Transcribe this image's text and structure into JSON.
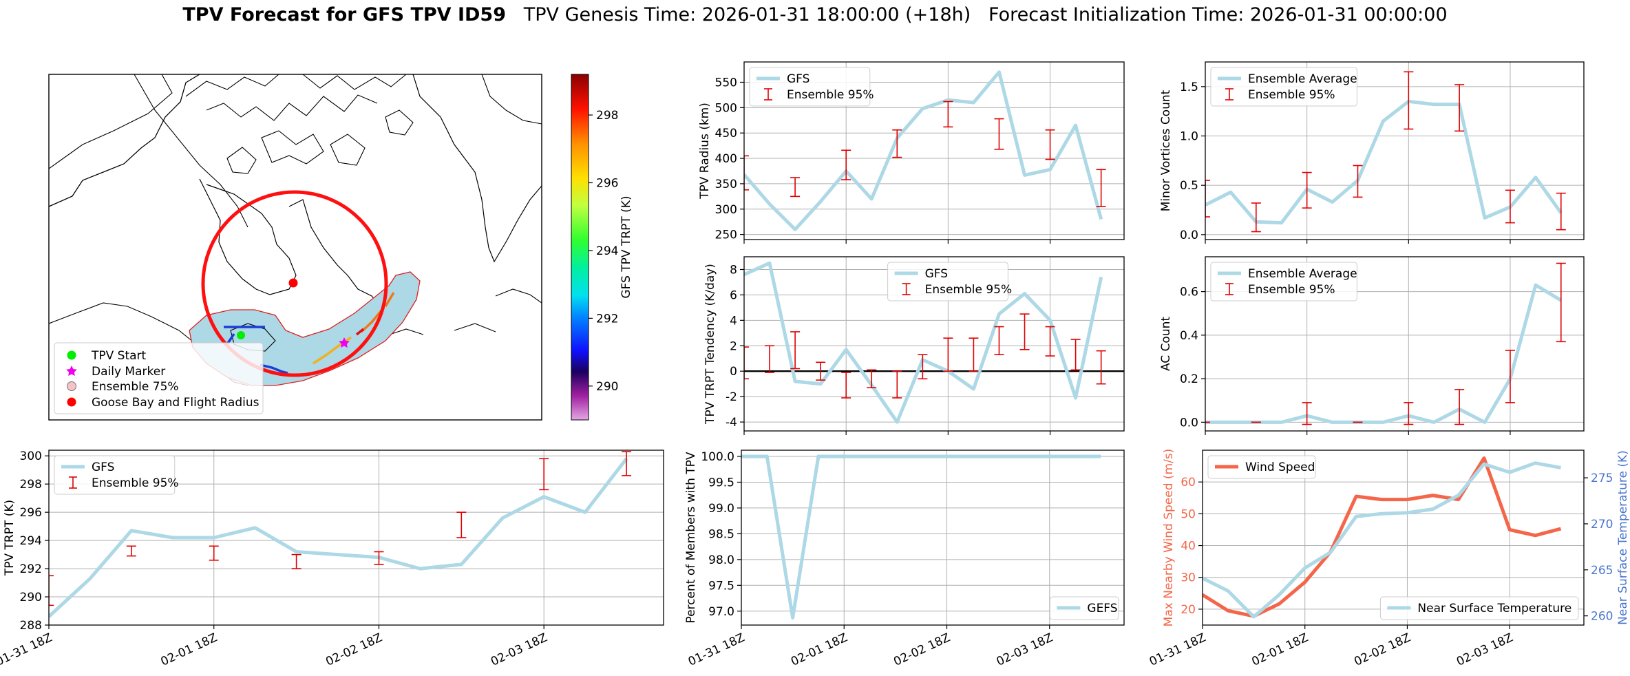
{
  "title": {
    "bold": "TPV Forecast for GFS TPV ID59",
    "rest": "   TPV Genesis Time: 2026-01-31 18:00:00 (+18h)   Forecast Initialization Time: 2026-01-31 00:00:00"
  },
  "x_tick_labels": [
    "01-31 18Z",
    "02-01 18Z",
    "02-02 18Z",
    "02-03 18Z"
  ],
  "colors": {
    "gfs_line": "#add8e6",
    "errorbar": "#e00000",
    "wind": "#f4664a",
    "temp": "#add8e6",
    "temp_axis": "#4a75d0",
    "track_circle": "#ff1010",
    "ensemble_fill": "#add8e6"
  },
  "chart_data": [
    {
      "id": "map",
      "type": "map",
      "colorbar": {
        "label": "GFS TPV TRPT (K)",
        "range": [
          289,
          299.2
        ],
        "ticks": [
          290,
          292,
          294,
          296,
          298
        ],
        "colormap": "gist_ncar-like (violet-blue-cyan-green-yellow-orange-red)"
      },
      "legend": {
        "placement": "lower-left",
        "entries": [
          {
            "label": "TPV Start",
            "marker": "circle",
            "color": "#00ee00"
          },
          {
            "label": "Daily Marker",
            "marker": "star",
            "color": "#ee00ee"
          },
          {
            "label": "Ensemble 75%",
            "marker": "circle",
            "color": "#f4c2c8"
          },
          {
            "label": "Goose Bay and Flight Radius",
            "marker": "circle",
            "color": "#ff0000"
          }
        ]
      }
    },
    {
      "id": "radius",
      "type": "line",
      "ylabel": "TPV Radius (km)",
      "ylim": [
        240,
        590
      ],
      "yticks": [
        250,
        300,
        350,
        400,
        450,
        500,
        550
      ],
      "legend": {
        "placement": "upper-left",
        "entries": [
          "GFS",
          "Ensemble 95%"
        ]
      },
      "series": [
        {
          "name": "GFS",
          "values": [
            368,
            310,
            260,
            315,
            375,
            320,
            440,
            498,
            515,
            510,
            570,
            367,
            378,
            465,
            280
          ]
        }
      ],
      "errorbars": [
        {
          "x": 0,
          "low": 338,
          "high": 405
        },
        {
          "x": 2,
          "low": 325,
          "high": 362
        },
        {
          "x": 4,
          "low": 358,
          "high": 416
        },
        {
          "x": 6,
          "low": 402,
          "high": 456
        },
        {
          "x": 8,
          "low": 462,
          "high": 512
        },
        {
          "x": 10,
          "low": 418,
          "high": 478
        },
        {
          "x": 12,
          "low": 398,
          "high": 456
        },
        {
          "x": 14,
          "low": 305,
          "high": 378
        }
      ]
    },
    {
      "id": "minor",
      "type": "line",
      "ylabel": "Minor Vortices Count",
      "ylim": [
        -0.05,
        1.75
      ],
      "yticks": [
        0.0,
        0.5,
        1.0,
        1.5
      ],
      "legend": {
        "placement": "upper-left",
        "entries": [
          "Ensemble Average",
          "Ensemble 95%"
        ]
      },
      "series": [
        {
          "name": "Ensemble Average",
          "values": [
            0.3,
            0.43,
            0.13,
            0.12,
            0.46,
            0.33,
            0.55,
            1.15,
            1.35,
            1.32,
            1.32,
            0.17,
            0.28,
            0.58,
            0.22
          ]
        }
      ],
      "errorbars": [
        {
          "x": 0,
          "low": 0.18,
          "high": 0.55
        },
        {
          "x": 2,
          "low": 0.03,
          "high": 0.32
        },
        {
          "x": 4,
          "low": 0.27,
          "high": 0.63
        },
        {
          "x": 6,
          "low": 0.38,
          "high": 0.7
        },
        {
          "x": 8,
          "low": 1.07,
          "high": 1.65
        },
        {
          "x": 10,
          "low": 1.05,
          "high": 1.52
        },
        {
          "x": 12,
          "low": 0.12,
          "high": 0.45
        },
        {
          "x": 14,
          "low": 0.05,
          "high": 0.42
        }
      ]
    },
    {
      "id": "tendency",
      "type": "line",
      "ylabel": "TPV TRPT Tendency (K/day)",
      "ylim": [
        -4.7,
        9.0
      ],
      "yticks": [
        -4,
        -2,
        0,
        2,
        4,
        6,
        8
      ],
      "legend": {
        "placement": "upper-center",
        "entries": [
          "GFS",
          "Ensemble 95%"
        ]
      },
      "series": [
        {
          "name": "GFS",
          "values": [
            7.6,
            8.5,
            -0.8,
            -1.0,
            1.7,
            -1.1,
            -4.0,
            0.9,
            0.0,
            -1.4,
            4.5,
            6.1,
            4.0,
            -2.1,
            7.4
          ]
        }
      ],
      "errorbars": [
        {
          "x": 0,
          "low": -0.6,
          "high": 1.9
        },
        {
          "x": 1,
          "low": -0.1,
          "high": 2.0
        },
        {
          "x": 2,
          "low": 0.2,
          "high": 3.1
        },
        {
          "x": 3,
          "low": -0.7,
          "high": 0.7
        },
        {
          "x": 4,
          "low": -2.1,
          "high": -0.1
        },
        {
          "x": 5,
          "low": -1.3,
          "high": 0.1
        },
        {
          "x": 6,
          "low": -2.1,
          "high": 0.0
        },
        {
          "x": 7,
          "low": -0.6,
          "high": 1.3
        },
        {
          "x": 8,
          "low": 0.0,
          "high": 2.6
        },
        {
          "x": 9,
          "low": 0.0,
          "high": 2.6
        },
        {
          "x": 10,
          "low": 1.3,
          "high": 3.5
        },
        {
          "x": 11,
          "low": 1.7,
          "high": 4.5
        },
        {
          "x": 12,
          "low": 1.2,
          "high": 3.5
        },
        {
          "x": 13,
          "low": 0.1,
          "high": 2.5
        },
        {
          "x": 14,
          "low": -1.0,
          "high": 1.6
        }
      ],
      "zero_line": true
    },
    {
      "id": "ac",
      "type": "line",
      "ylabel": "AC Count",
      "ylim": [
        -0.04,
        0.76
      ],
      "yticks": [
        0.0,
        0.2,
        0.4,
        0.6
      ],
      "legend": {
        "placement": "upper-left",
        "entries": [
          "Ensemble Average",
          "Ensemble 95%"
        ]
      },
      "series": [
        {
          "name": "Ensemble Average",
          "values": [
            0.0,
            0.0,
            0.0,
            0.0,
            0.03,
            0.0,
            0.0,
            0.0,
            0.03,
            0.0,
            0.06,
            0.0,
            0.2,
            0.63,
            0.56
          ]
        }
      ],
      "errorbars": [
        {
          "x": 0,
          "low": 0.0,
          "high": 0.0
        },
        {
          "x": 2,
          "low": 0.0,
          "high": 0.0
        },
        {
          "x": 4,
          "low": -0.01,
          "high": 0.09
        },
        {
          "x": 6,
          "low": 0.0,
          "high": 0.0
        },
        {
          "x": 8,
          "low": -0.01,
          "high": 0.09
        },
        {
          "x": 10,
          "low": -0.01,
          "high": 0.15
        },
        {
          "x": 12,
          "low": 0.09,
          "high": 0.33
        },
        {
          "x": 14,
          "low": 0.37,
          "high": 0.73
        }
      ]
    },
    {
      "id": "trpt",
      "type": "line",
      "ylabel": "TPV TRPT (K)",
      "ylim": [
        288,
        300.4
      ],
      "yticks": [
        288,
        290,
        292,
        294,
        296,
        298,
        300
      ],
      "legend": {
        "placement": "upper-left",
        "entries": [
          "GFS",
          "Ensemble 95%"
        ]
      },
      "series": [
        {
          "name": "GFS",
          "values": [
            288.6,
            291.3,
            294.7,
            294.2,
            294.2,
            294.9,
            293.2,
            293.0,
            292.8,
            292.0,
            292.3,
            295.6,
            297.1,
            296.0,
            299.8
          ]
        }
      ],
      "errorbars": [
        {
          "x": 0,
          "low": 289.4,
          "high": 291.5
        },
        {
          "x": 2,
          "low": 292.9,
          "high": 293.6
        },
        {
          "x": 4,
          "low": 292.6,
          "high": 293.6
        },
        {
          "x": 6,
          "low": 292.0,
          "high": 293.0
        },
        {
          "x": 8,
          "low": 292.3,
          "high": 293.2
        },
        {
          "x": 10,
          "low": 294.2,
          "high": 296.0
        },
        {
          "x": 12,
          "low": 297.6,
          "high": 299.8
        },
        {
          "x": 14,
          "low": 298.6,
          "high": 300.3
        }
      ]
    },
    {
      "id": "percent",
      "type": "line",
      "ylabel": "Percent of Members with TPV",
      "ylim": [
        96.73,
        100.12
      ],
      "yticks": [
        97.0,
        97.5,
        98.0,
        98.5,
        99.0,
        99.5,
        100.0
      ],
      "legend": {
        "placement": "lower-right",
        "entries": [
          "GEFS"
        ]
      },
      "series": [
        {
          "name": "GEFS",
          "values": [
            100,
            100,
            96.87,
            100,
            100,
            100,
            100,
            100,
            100,
            100,
            100,
            100,
            100,
            100,
            100
          ]
        }
      ]
    },
    {
      "id": "wind_temp",
      "type": "line",
      "ylabel": "Max Nearby Wind Speed (m/s)",
      "ylabel_right": "Near Surface Temperature (K)",
      "ylim": [
        15,
        70
      ],
      "yticks": [
        20,
        30,
        40,
        50,
        60
      ],
      "ylim_right": [
        259,
        278
      ],
      "yticks_right": [
        260,
        265,
        270,
        275
      ],
      "legend": {
        "placement": "upper-left",
        "entries": [
          "Wind Speed"
        ]
      },
      "legend_right": {
        "placement": "lower-right",
        "entries": [
          "Near Surface Temperature"
        ]
      },
      "series": [
        {
          "name": "Wind Speed",
          "values": [
            24.5,
            19.5,
            17.8,
            21.7,
            28.5,
            38.0,
            55.5,
            54.5,
            54.5,
            55.8,
            54.5,
            67.5,
            45.0,
            43.2,
            45.3
          ]
        },
        {
          "name": "Near Surface Temperature",
          "values": [
            264.1,
            262.7,
            259.9,
            262.3,
            265.2,
            266.9,
            270.8,
            271.1,
            271.2,
            271.6,
            273.1,
            276.5,
            275.6,
            276.6,
            276.1
          ]
        }
      ]
    }
  ]
}
